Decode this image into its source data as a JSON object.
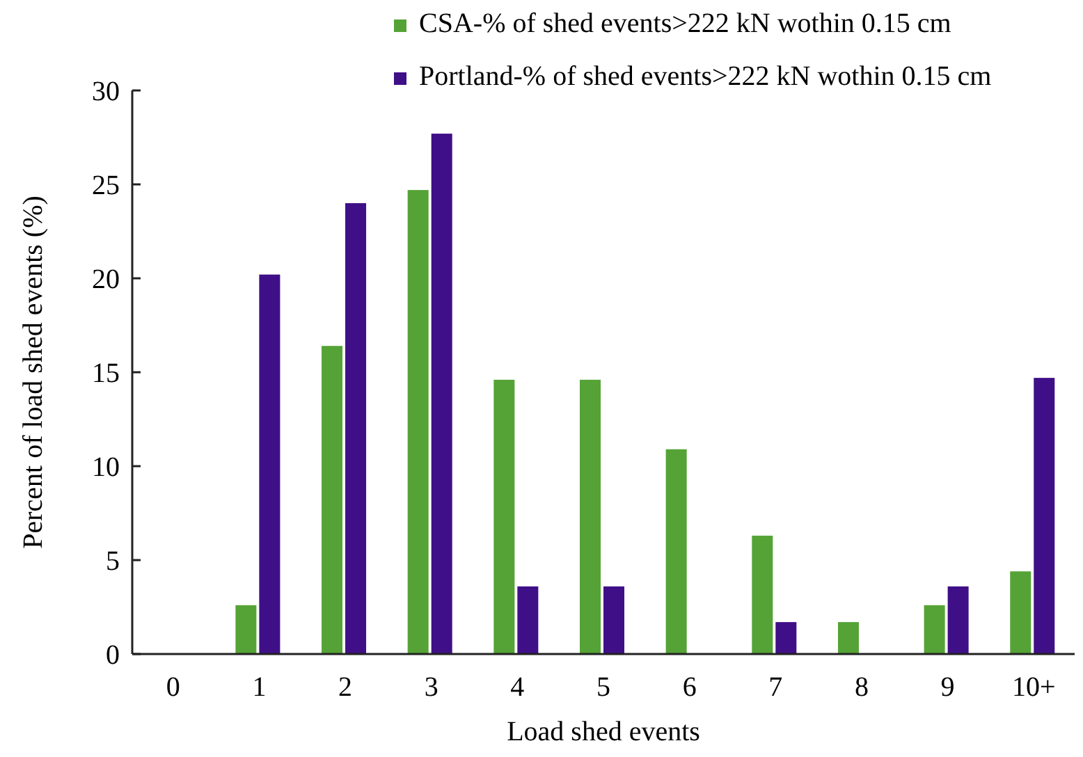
{
  "chart_data": {
    "type": "bar",
    "xlabel": "Load shed events",
    "ylabel": "Percent of load shed events (%)",
    "categories": [
      "0",
      "1",
      "2",
      "3",
      "4",
      "5",
      "6",
      "7",
      "8",
      "9",
      "10+"
    ],
    "series": [
      {
        "name": "CSA-% of shed events>222 kN wothin 0.15 cm",
        "color": "#55a336",
        "values": [
          0,
          2.6,
          16.4,
          24.7,
          14.6,
          14.6,
          10.9,
          6.3,
          1.7,
          2.6,
          4.4
        ]
      },
      {
        "name": "Portland-% of shed events>222 kN wothin 0.15 cm",
        "color": "#3f0f87",
        "values": [
          0,
          20.2,
          24.0,
          27.7,
          3.6,
          3.6,
          0,
          1.7,
          0,
          3.6,
          14.7
        ]
      }
    ],
    "ylim": [
      0,
      30
    ],
    "yticks": [
      0,
      5,
      10,
      15,
      20,
      25,
      30
    ],
    "legend": "top"
  }
}
